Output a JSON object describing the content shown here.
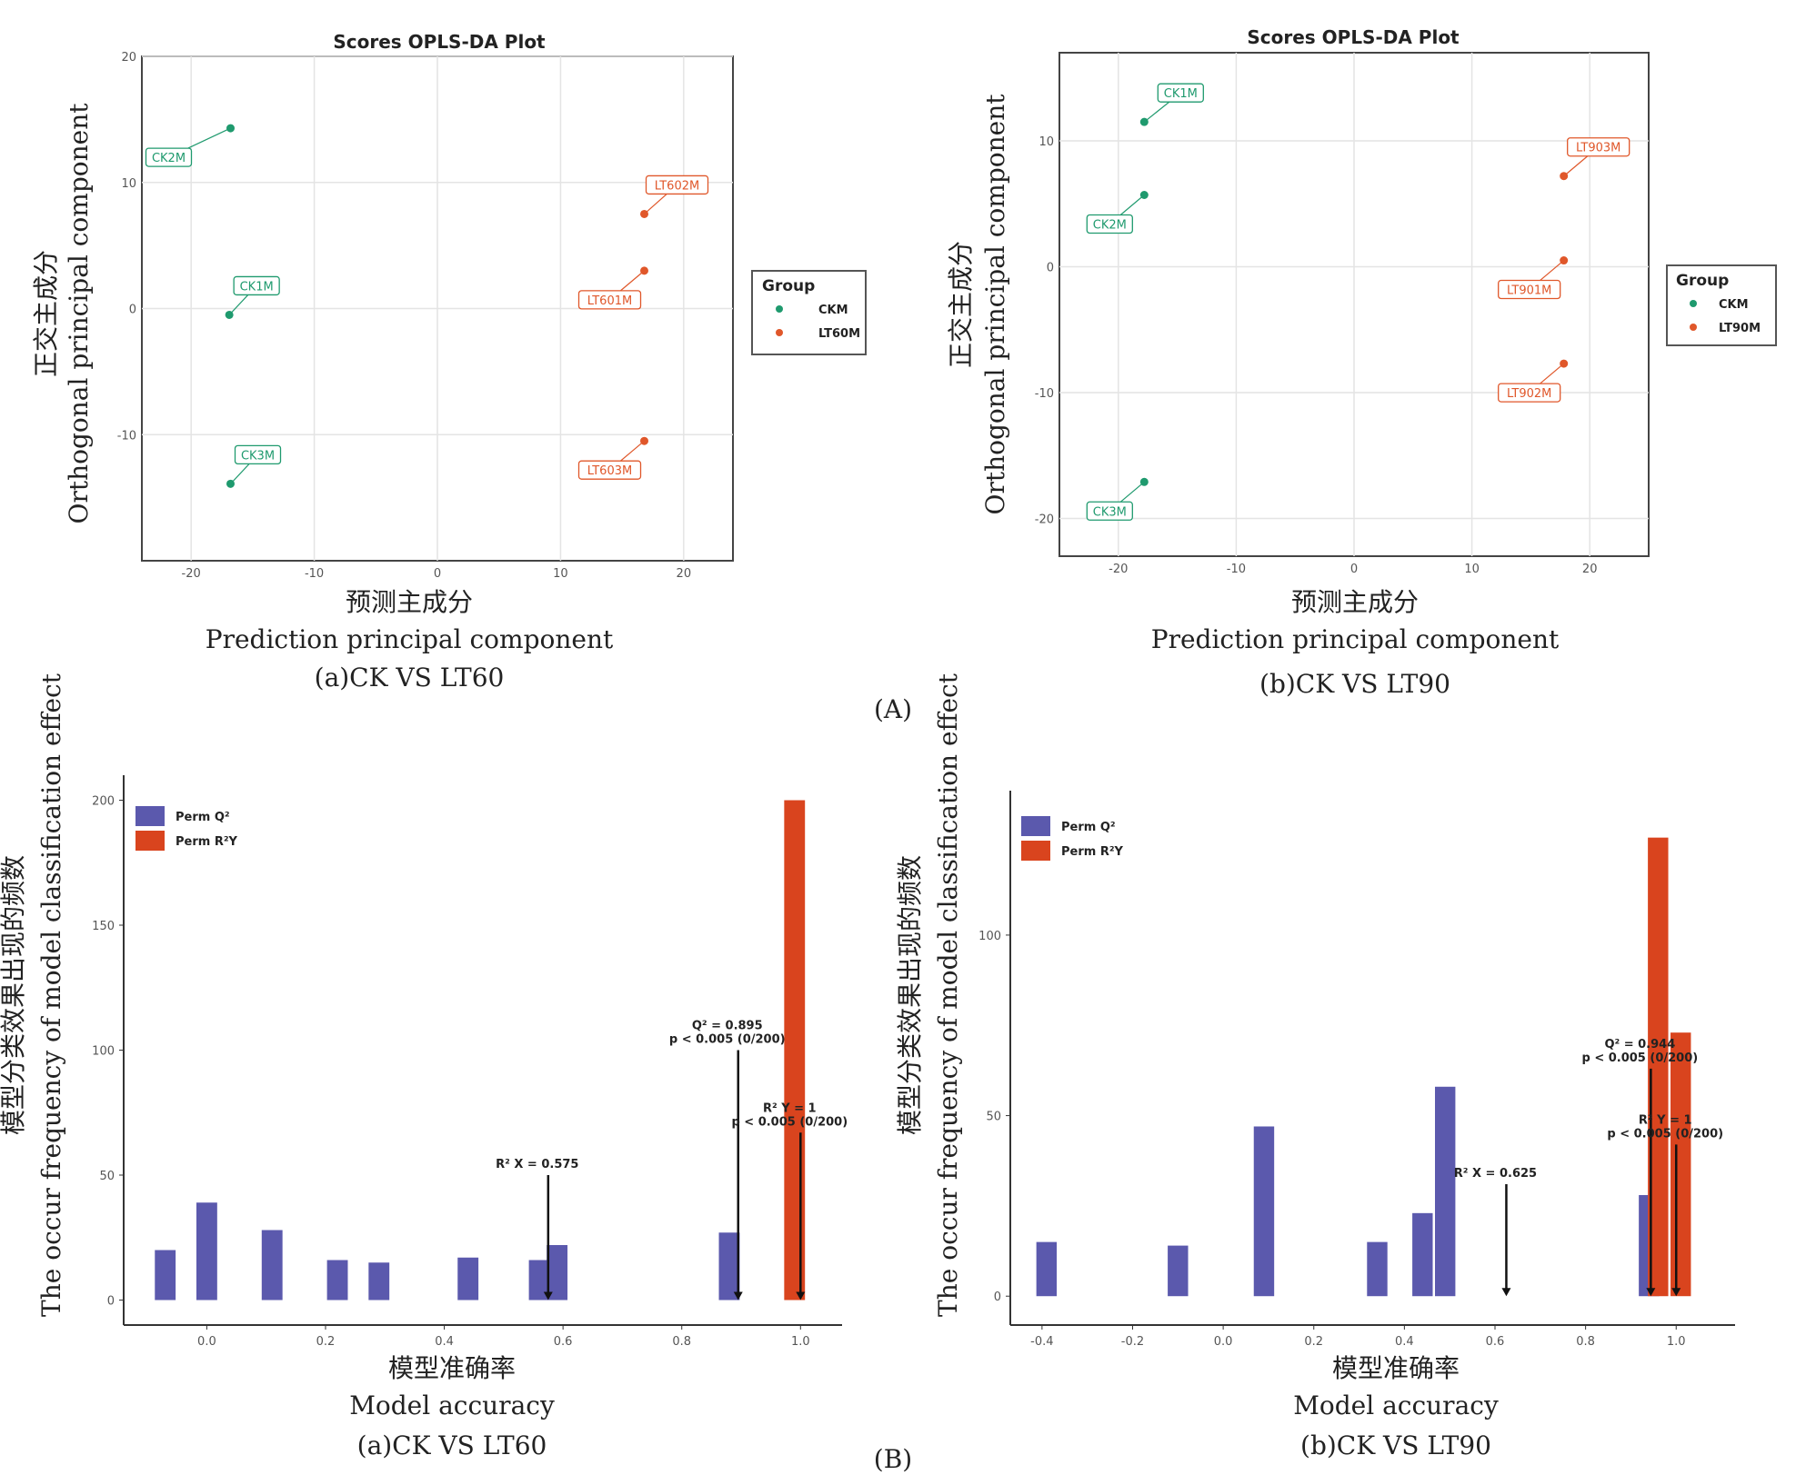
{
  "colors": {
    "ck": "#1f9a6e",
    "lt": "#e0572a",
    "perm_q2": "#5b59ad",
    "perm_r2y": "#d9441e"
  },
  "group_labels": {
    "A": "(A)",
    "B": "(B)"
  },
  "chart_data": [
    {
      "id": "scores-a",
      "type": "scatter",
      "title": "Scores OPLS-DA Plot",
      "ylabel_cn": "正交主成分",
      "ylabel_en": "Orthogonal principal component",
      "xlabel_cn": "预测主成分",
      "xlabel_en": "Prediction principal component",
      "caption": "(a)CK VS LT60",
      "xlim": [
        -24,
        24
      ],
      "ylim": [
        -20,
        20
      ],
      "xticks": [
        -20,
        -10,
        0,
        10,
        20
      ],
      "yticks": [
        -10,
        0,
        10,
        20
      ],
      "grid": true,
      "legend_title": "Group",
      "series": [
        {
          "name": "CKM",
          "color_key": "ck",
          "points": [
            {
              "x": -16.8,
              "y": 14.3,
              "label": "CK2M"
            },
            {
              "x": -16.9,
              "y": -0.5,
              "label": "CK1M"
            },
            {
              "x": -16.8,
              "y": -13.9,
              "label": "CK3M"
            }
          ]
        },
        {
          "name": "LT60M",
          "color_key": "lt",
          "points": [
            {
              "x": 16.8,
              "y": 7.5,
              "label": "LT602M"
            },
            {
              "x": 16.8,
              "y": 3.0,
              "label": "LT601M"
            },
            {
              "x": 16.8,
              "y": -10.5,
              "label": "LT603M"
            }
          ]
        }
      ]
    },
    {
      "id": "scores-b",
      "type": "scatter",
      "title": "Scores OPLS-DA Plot",
      "ylabel_cn": "正交主成分",
      "ylabel_en": "Orthogonal principal component",
      "xlabel_cn": "预测主成分",
      "xlabel_en": "Prediction principal component",
      "caption": "(b)CK VS LT90",
      "xlim": [
        -25,
        25
      ],
      "ylim": [
        -23,
        17
      ],
      "xticks": [
        -20,
        -10,
        0,
        10,
        20
      ],
      "yticks": [
        -20,
        -10,
        0,
        10
      ],
      "grid": true,
      "legend_title": "Group",
      "series": [
        {
          "name": "CKM",
          "color_key": "ck",
          "points": [
            {
              "x": -17.8,
              "y": 11.5,
              "label": "CK1M"
            },
            {
              "x": -17.8,
              "y": 5.7,
              "label": "CK2M"
            },
            {
              "x": -17.8,
              "y": -17.1,
              "label": "CK3M"
            }
          ]
        },
        {
          "name": "LT90M",
          "color_key": "lt",
          "points": [
            {
              "x": 17.8,
              "y": 7.2,
              "label": "LT903M"
            },
            {
              "x": 17.8,
              "y": 0.5,
              "label": "LT901M"
            },
            {
              "x": 17.8,
              "y": -7.7,
              "label": "LT902M"
            }
          ]
        }
      ]
    },
    {
      "id": "perm-a",
      "type": "bar",
      "ylabel_cn": "模型分类效果出现的频数",
      "ylabel_en": "The occur frequency of model classification effect",
      "xlabel_cn": "模型准确率",
      "xlabel_en": "Model accuracy",
      "caption": "(a)CK VS LT60",
      "xlim": [
        -0.14,
        1.07
      ],
      "ylim": [
        -10,
        210
      ],
      "xticks": [
        0.0,
        0.2,
        0.4,
        0.6,
        0.8,
        1.0
      ],
      "yticks": [
        0,
        50,
        100,
        150,
        200
      ],
      "tick_labels_x": [
        "0.0",
        "0.2",
        "0.4",
        "0.6",
        "0.8",
        "1.0"
      ],
      "bar_width": 0.035,
      "legend": [
        "Perm Q²",
        "Perm R²Y"
      ],
      "series": [
        {
          "name": "Perm Q²",
          "color_key": "perm_q2",
          "bars": [
            {
              "x": -0.07,
              "y": 20
            },
            {
              "x": 0.0,
              "y": 39
            },
            {
              "x": 0.11,
              "y": 28
            },
            {
              "x": 0.22,
              "y": 16
            },
            {
              "x": 0.29,
              "y": 15
            },
            {
              "x": 0.44,
              "y": 17
            },
            {
              "x": 0.56,
              "y": 16
            },
            {
              "x": 0.59,
              "y": 22
            },
            {
              "x": 0.88,
              "y": 27
            }
          ]
        },
        {
          "name": "Perm R²Y",
          "color_key": "perm_r2y",
          "bars": [
            {
              "x": 0.99,
              "y": 200
            }
          ]
        }
      ],
      "arrows": [
        {
          "x": 0.575,
          "y_from": 50,
          "lines": [
            "R² X = 0.575"
          ]
        },
        {
          "x": 0.895,
          "y_from": 100,
          "lines": [
            "Q² = 0.895",
            "p < 0.005 (0/200)"
          ]
        },
        {
          "x": 1.0,
          "y_from": 67,
          "lines": [
            "R² Y = 1",
            "p < 0.005 (0/200)"
          ]
        }
      ]
    },
    {
      "id": "perm-b",
      "type": "bar",
      "ylabel_cn": "模型分类效果出现的频数",
      "ylabel_en": "The occur frequency of model classification effect",
      "xlabel_cn": "模型准确率",
      "xlabel_en": "Model accuracy",
      "caption": "(b)CK VS LT90",
      "xlim": [
        -0.47,
        1.13
      ],
      "ylim": [
        -8,
        140
      ],
      "xticks": [
        -0.4,
        -0.2,
        0.0,
        0.2,
        0.4,
        0.6,
        0.8,
        1.0
      ],
      "yticks": [
        0,
        50,
        100
      ],
      "tick_labels_x": [
        "-0.4",
        "-0.2",
        "0.0",
        "0.2",
        "0.4",
        "0.6",
        "0.8",
        "1.0"
      ],
      "bar_width": 0.045,
      "legend": [
        "Perm Q²",
        "Perm R²Y"
      ],
      "series": [
        {
          "name": "Perm Q²",
          "color_key": "perm_q2",
          "bars": [
            {
              "x": -0.39,
              "y": 15
            },
            {
              "x": -0.1,
              "y": 14
            },
            {
              "x": 0.09,
              "y": 47
            },
            {
              "x": 0.34,
              "y": 15
            },
            {
              "x": 0.44,
              "y": 23
            },
            {
              "x": 0.49,
              "y": 58
            },
            {
              "x": 0.94,
              "y": 28
            }
          ]
        },
        {
          "name": "Perm R²Y",
          "color_key": "perm_r2y",
          "bars": [
            {
              "x": 0.96,
              "y": 127
            },
            {
              "x": 1.01,
              "y": 73
            }
          ]
        }
      ],
      "arrows": [
        {
          "x": 0.625,
          "y_from": 31,
          "lines": [
            "R² X = 0.625"
          ]
        },
        {
          "x": 0.944,
          "y_from": 63,
          "lines": [
            "Q² = 0.944",
            "p < 0.005 (0/200)"
          ]
        },
        {
          "x": 1.0,
          "y_from": 42,
          "lines": [
            "R² Y = 1",
            "p < 0.005 (0/200)"
          ]
        }
      ]
    }
  ]
}
